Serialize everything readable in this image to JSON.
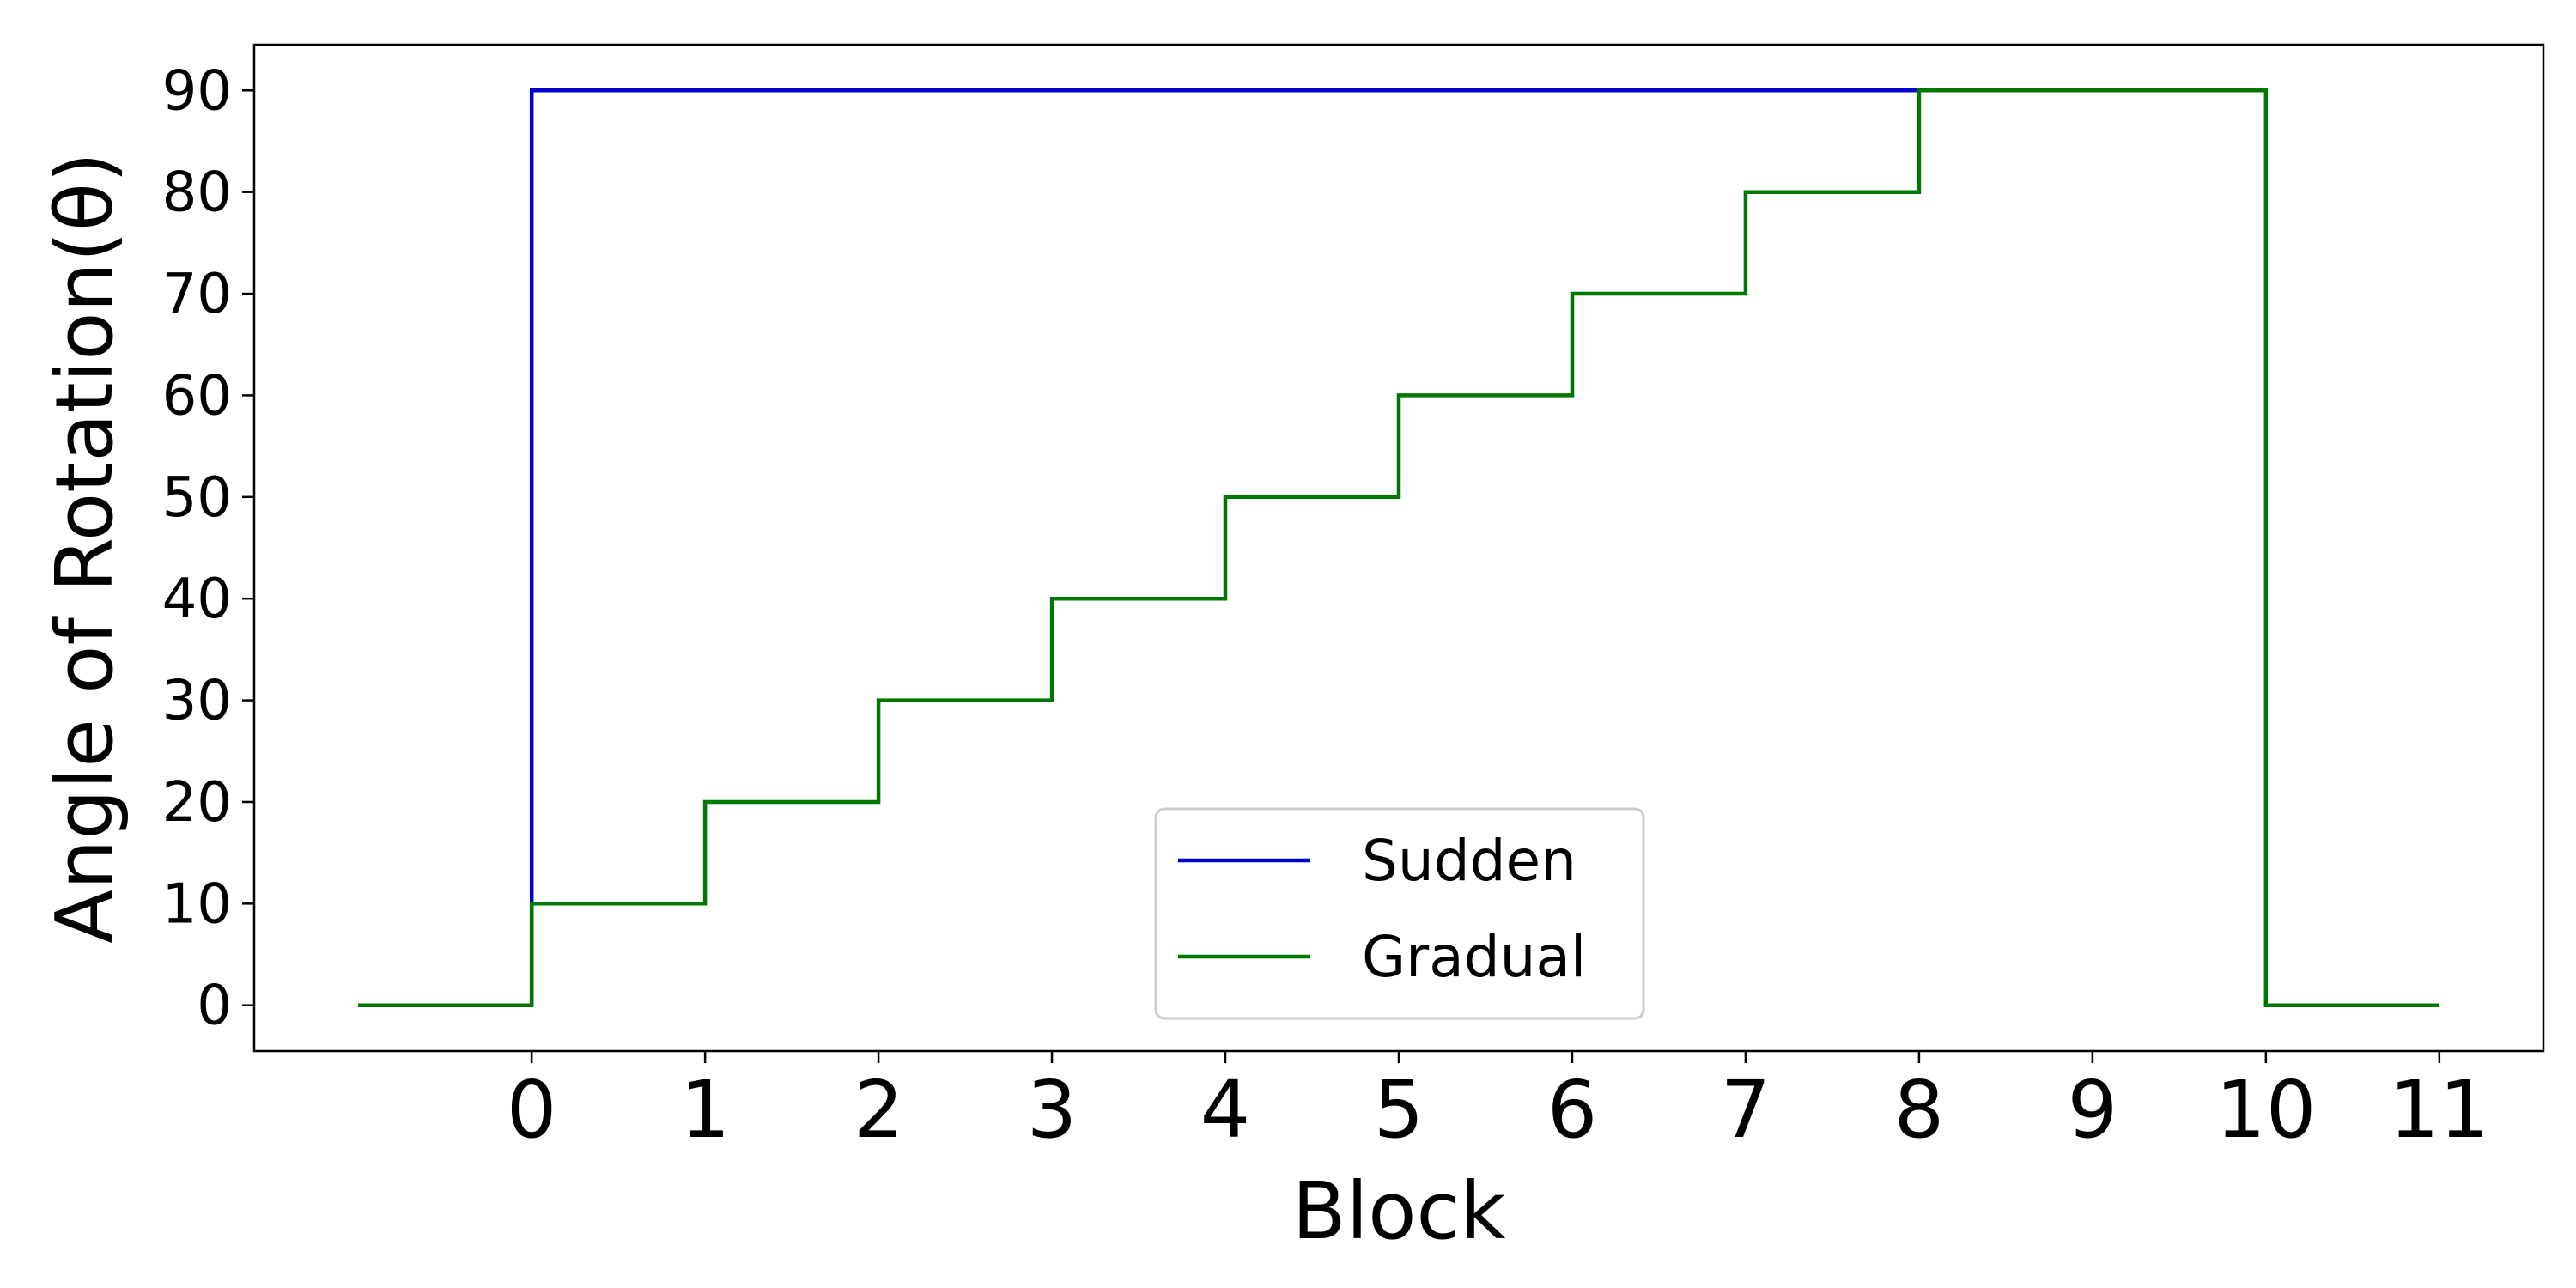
{
  "chart_data": {
    "type": "line",
    "xlabel": "Block",
    "ylabel": "Angle of Rotation(θ)",
    "xlim": [
      -1.6,
      11.6
    ],
    "ylim": [
      -4.5,
      94.5
    ],
    "xticks": [
      "0",
      "1",
      "2",
      "3",
      "4",
      "5",
      "6",
      "7",
      "8",
      "9",
      "10",
      "11"
    ],
    "yticks": [
      "0",
      "10",
      "20",
      "30",
      "40",
      "50",
      "60",
      "70",
      "80",
      "90"
    ],
    "grid": false,
    "legend_position": "bottom-center",
    "series": [
      {
        "name": "Sudden",
        "color": "#0000cc",
        "x": [
          -1,
          0,
          0,
          8
        ],
        "y": [
          0,
          0,
          90,
          90
        ]
      },
      {
        "name": "Gradual",
        "color": "#007700",
        "x": [
          -1,
          0,
          0,
          1,
          1,
          2,
          2,
          3,
          3,
          4,
          4,
          5,
          5,
          6,
          6,
          7,
          7,
          8,
          8,
          10,
          10,
          11
        ],
        "y": [
          0,
          0,
          10,
          10,
          20,
          20,
          30,
          30,
          40,
          40,
          50,
          50,
          60,
          60,
          70,
          70,
          80,
          80,
          90,
          90,
          0,
          0
        ]
      }
    ]
  }
}
